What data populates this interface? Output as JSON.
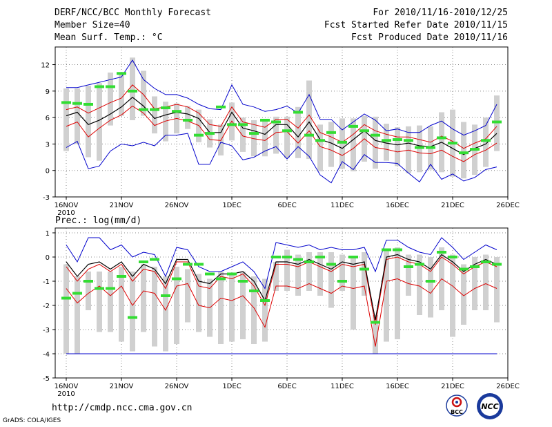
{
  "header": {
    "title": "DERF/NCC/BCC Monthly Forecast",
    "member_size": "Member Size=40",
    "variable": "Mean Surf. Temp.: °C",
    "period": "For 2010/11/16-2010/12/25",
    "started": "Fcst Started Refer Date 2010/11/15",
    "produced": "Fcst Produced Date 2010/11/16"
  },
  "footer": {
    "url": "http://cmdp.ncc.cma.gov.cn",
    "credit": "GrADS: COLA/IGES",
    "logo_left": "BCC",
    "logo_right": "NCC"
  },
  "colors": {
    "box": "#d0d0d0",
    "max": "#0000cc",
    "min": "#0000cc",
    "p_hi": "#dd0000",
    "p_lo": "#dd0000",
    "mean": "#000000",
    "marker": "#33dd33",
    "grid": "#888888"
  },
  "chart_data": [
    {
      "type": "box-spread",
      "title": "Mean Surf. Temp.: °C",
      "x_labels": [
        "16NOV",
        "21NOV",
        "26NOV",
        "1DEC",
        "6DEC",
        "11DEC",
        "16DEC",
        "21DEC",
        "26DEC"
      ],
      "x_year": "2010",
      "x_label_days": [
        0,
        5,
        10,
        15,
        20,
        25,
        30,
        35,
        40
      ],
      "xlim": [
        -1,
        40
      ],
      "ylim": [
        -3,
        14
      ],
      "y_ticks": [
        -3,
        0,
        3,
        6,
        9,
        12
      ],
      "y_tick_labels": [
        "-3",
        "0",
        "3",
        "6",
        "9",
        "12"
      ],
      "days": [
        0,
        1,
        2,
        3,
        4,
        5,
        6,
        7,
        8,
        9,
        10,
        11,
        12,
        13,
        14,
        15,
        16,
        17,
        18,
        19,
        20,
        21,
        22,
        23,
        24,
        25,
        26,
        27,
        28,
        29,
        30,
        31,
        32,
        33,
        34,
        35,
        36,
        37,
        38,
        39
      ],
      "series": [
        {
          "name": "max",
          "values": [
            9.4,
            9.4,
            9.7,
            10.0,
            10.3,
            10.6,
            12.5,
            10.3,
            9.3,
            8.6,
            8.6,
            8.2,
            7.5,
            7.0,
            6.9,
            9.7,
            7.5,
            7.2,
            6.7,
            6.9,
            7.3,
            6.5,
            8.6,
            5.8,
            5.8,
            4.6,
            5.5,
            6.4,
            5.7,
            4.5,
            4.7,
            4.3,
            4.3,
            5.1,
            5.6,
            4.7,
            4.0,
            4.5,
            5.1,
            7.5
          ]
        },
        {
          "name": "p_hi",
          "values": [
            6.9,
            7.2,
            6.5,
            7.1,
            7.7,
            8.2,
            9.7,
            8.6,
            7.0,
            7.2,
            7.5,
            7.2,
            6.5,
            5.2,
            5.0,
            7.2,
            5.5,
            5.2,
            4.9,
            5.8,
            5.8,
            4.8,
            6.3,
            4.3,
            3.8,
            3.2,
            4.1,
            5.2,
            4.5,
            4.1,
            3.8,
            3.8,
            3.5,
            3.2,
            3.9,
            3.3,
            2.5,
            3.1,
            3.6,
            5.0
          ]
        },
        {
          "name": "mean",
          "values": [
            6.2,
            6.6,
            5.2,
            5.7,
            6.4,
            7.2,
            8.3,
            7.3,
            5.9,
            6.3,
            6.6,
            6.4,
            5.9,
            4.3,
            4.3,
            6.6,
            4.8,
            4.5,
            4.1,
            5.2,
            5.2,
            3.8,
            5.5,
            3.5,
            3.1,
            2.5,
            3.5,
            4.5,
            3.4,
            3.1,
            2.9,
            3.1,
            2.8,
            2.7,
            3.2,
            2.5,
            1.8,
            2.5,
            3.0,
            4.2
          ]
        },
        {
          "name": "p_lo",
          "values": [
            5.0,
            5.5,
            3.8,
            4.8,
            5.7,
            6.3,
            7.3,
            6.5,
            5.1,
            5.6,
            5.9,
            5.6,
            5.1,
            3.5,
            3.4,
            5.6,
            3.9,
            3.6,
            3.4,
            4.3,
            4.4,
            3.1,
            4.5,
            2.7,
            2.3,
            1.7,
            2.5,
            3.6,
            2.6,
            2.4,
            2.1,
            2.3,
            2.0,
            1.9,
            2.3,
            1.6,
            1.0,
            1.8,
            2.3,
            3.1
          ]
        },
        {
          "name": "min",
          "values": [
            2.6,
            3.3,
            0.2,
            0.5,
            2.2,
            3.0,
            2.8,
            3.2,
            2.8,
            4.0,
            4.0,
            4.2,
            0.7,
            0.7,
            3.2,
            2.8,
            1.2,
            1.5,
            2.2,
            2.7,
            1.3,
            2.7,
            1.6,
            -0.5,
            -1.4,
            1.0,
            0.1,
            1.8,
            0.9,
            0.9,
            0.8,
            -0.3,
            -1.3,
            0.7,
            -1.0,
            -0.4,
            -1.2,
            -0.8,
            0.1,
            0.4
          ]
        },
        {
          "name": "box_hi",
          "values": [
            9.3,
            9.3,
            9.6,
            9.9,
            11.1,
            11.0,
            12.8,
            11.3,
            8.4,
            7.8,
            7.6,
            7.3,
            6.9,
            5.8,
            5.2,
            7.7,
            6.0,
            5.7,
            5.8,
            6.1,
            6.1,
            7.2,
            10.2,
            5.2,
            5.5,
            5.9,
            5.9,
            6.2,
            6.1,
            5.3,
            4.9,
            5.0,
            5.1,
            5.0,
            6.6,
            6.9,
            5.5,
            5.2,
            6.0,
            8.5
          ]
        },
        {
          "name": "box_lo",
          "values": [
            2.2,
            3.0,
            1.5,
            1.1,
            5.1,
            6.2,
            5.7,
            6.2,
            4.2,
            3.3,
            4.2,
            4.7,
            3.2,
            2.6,
            1.7,
            3.4,
            2.1,
            1.6,
            1.6,
            1.9,
            1.4,
            1.4,
            1.3,
            -0.1,
            0.4,
            0.2,
            -0.1,
            1.0,
            0.2,
            1.1,
            0.5,
            -0.3,
            -0.2,
            0.1,
            -0.2,
            -0.7,
            -0.9,
            -0.5,
            0.4,
            2.2
          ]
        },
        {
          "name": "marker",
          "values": [
            7.7,
            7.6,
            7.5,
            9.5,
            9.5,
            11.0,
            9.0,
            6.9,
            6.9,
            7.1,
            6.7,
            5.7,
            4.0,
            4.2,
            7.2,
            5.2,
            5.2,
            4.2,
            5.7,
            5.5,
            4.5,
            6.6,
            4.0,
            3.4,
            4.3,
            3.2,
            5.0,
            4.5,
            4.0,
            3.4,
            3.5,
            3.4,
            2.6,
            2.6,
            3.7,
            3.1,
            2.0,
            2.4,
            3.4,
            5.5
          ]
        }
      ]
    },
    {
      "type": "box-spread",
      "title": "Prec.: log(mm/d)",
      "x_labels": [
        "16NOV",
        "21NOV",
        "26NOV",
        "1DEC",
        "6DEC",
        "11DEC",
        "16DEC",
        "21DEC",
        "26DEC"
      ],
      "x_year": "2010",
      "x_label_days": [
        0,
        5,
        10,
        15,
        20,
        25,
        30,
        35,
        40
      ],
      "xlim": [
        -1,
        40
      ],
      "ylim": [
        -5,
        1.2
      ],
      "y_ticks": [
        -5,
        -4,
        -3,
        -2,
        -1,
        0,
        1
      ],
      "y_tick_labels": [
        "-5",
        "-4",
        "-3",
        "-2",
        "-1",
        "0",
        "1"
      ],
      "days": [
        0,
        1,
        2,
        3,
        4,
        5,
        6,
        7,
        8,
        9,
        10,
        11,
        12,
        13,
        14,
        15,
        16,
        17,
        18,
        19,
        20,
        21,
        22,
        23,
        24,
        25,
        26,
        27,
        28,
        29,
        30,
        31,
        32,
        33,
        34,
        35,
        36,
        37,
        38,
        39
      ],
      "series": [
        {
          "name": "max",
          "values": [
            0.5,
            -0.2,
            0.8,
            0.8,
            0.3,
            0.5,
            0.0,
            0.2,
            0.1,
            -0.8,
            0.4,
            0.3,
            -0.4,
            -0.6,
            -0.6,
            -0.4,
            -0.2,
            -0.6,
            -1.3,
            0.6,
            0.5,
            0.4,
            0.5,
            0.3,
            0.4,
            0.3,
            0.3,
            0.4,
            -0.6,
            0.7,
            0.7,
            0.4,
            0.2,
            0.1,
            0.8,
            0.4,
            -0.1,
            0.2,
            0.5,
            0.3
          ]
        },
        {
          "name": "p_hi",
          "values": [
            -0.4,
            -1.0,
            -0.5,
            -0.3,
            -0.6,
            -0.3,
            -1.0,
            -0.5,
            -0.6,
            -1.3,
            -0.2,
            -0.2,
            -1.2,
            -1.3,
            -0.8,
            -0.9,
            -0.7,
            -1.2,
            -2.0,
            -0.3,
            -0.3,
            -0.4,
            -0.2,
            -0.4,
            -0.6,
            -0.3,
            -0.4,
            -0.3,
            -2.8,
            -0.1,
            0.0,
            -0.2,
            -0.3,
            -0.6,
            0.0,
            -0.3,
            -0.7,
            -0.4,
            -0.2,
            -0.4
          ]
        },
        {
          "name": "mean",
          "values": [
            -0.2,
            -0.8,
            -0.3,
            -0.2,
            -0.5,
            -0.2,
            -0.8,
            -0.3,
            -0.5,
            -1.1,
            -0.1,
            -0.1,
            -1.0,
            -1.1,
            -0.7,
            -0.7,
            -0.6,
            -1.0,
            -1.8,
            -0.2,
            -0.2,
            -0.3,
            -0.1,
            -0.3,
            -0.5,
            -0.2,
            -0.3,
            -0.2,
            -2.6,
            0.0,
            0.1,
            -0.1,
            -0.2,
            -0.5,
            0.1,
            -0.2,
            -0.6,
            -0.3,
            -0.1,
            -0.3
          ]
        },
        {
          "name": "p_lo",
          "values": [
            -1.3,
            -1.9,
            -1.5,
            -1.2,
            -1.6,
            -1.2,
            -2.0,
            -1.4,
            -1.5,
            -2.2,
            -1.2,
            -1.1,
            -2.0,
            -2.1,
            -1.7,
            -1.8,
            -1.6,
            -2.1,
            -2.9,
            -1.2,
            -1.2,
            -1.3,
            -1.1,
            -1.3,
            -1.5,
            -1.2,
            -1.3,
            -1.2,
            -3.7,
            -1.0,
            -0.9,
            -1.1,
            -1.2,
            -1.5,
            -0.9,
            -1.2,
            -1.6,
            -1.3,
            -1.1,
            -1.3
          ]
        },
        {
          "name": "min",
          "values": [
            -4.0,
            -4.0,
            -4.0,
            -4.0,
            -4.0,
            -4.0,
            -4.0,
            -4.0,
            -4.0,
            -4.0,
            -4.0,
            -4.0,
            -4.0,
            -4.0,
            -4.0,
            -4.0,
            -4.0,
            -4.0,
            -4.0,
            -4.0,
            -4.0,
            -4.0,
            -4.0,
            -4.0,
            -4.0,
            -4.0,
            -4.0,
            -4.0,
            -4.0,
            -4.0,
            -4.0,
            -4.0,
            -4.0,
            -4.0,
            -4.0,
            -4.0,
            -4.0,
            -4.0,
            -4.0,
            -4.0
          ]
        },
        {
          "name": "box_hi",
          "values": [
            -0.3,
            -0.8,
            -0.6,
            -0.6,
            -0.6,
            -0.4,
            -0.6,
            -0.3,
            -0.4,
            -0.8,
            -0.4,
            -0.5,
            -0.7,
            -0.9,
            -0.6,
            -0.7,
            -0.6,
            -0.8,
            -0.9,
            -0.2,
            0.3,
            0.1,
            0.2,
            0.2,
            0.2,
            0.1,
            0.0,
            0.2,
            -2.4,
            0.3,
            0.4,
            0.1,
            0.1,
            0.0,
            0.4,
            0.1,
            -0.3,
            0.0,
            0.1,
            0.0
          ]
        },
        {
          "name": "box_lo",
          "values": [
            -4.0,
            -4.0,
            -2.2,
            -3.1,
            -3.1,
            -3.5,
            -3.9,
            -3.1,
            -3.7,
            -3.9,
            -3.6,
            -2.7,
            -3.1,
            -3.3,
            -3.6,
            -3.5,
            -3.4,
            -3.6,
            -3.5,
            -1.4,
            -1.4,
            -1.6,
            -1.4,
            -1.6,
            -2.1,
            -1.4,
            -3.0,
            -1.6,
            -4.0,
            -3.5,
            -3.4,
            -1.6,
            -2.4,
            -2.5,
            -2.2,
            -3.3,
            -2.8,
            -2.2,
            -2.2,
            -2.7
          ]
        },
        {
          "name": "marker",
          "values": [
            -1.7,
            -1.5,
            -1.0,
            -1.3,
            -1.3,
            -0.8,
            -2.5,
            -0.2,
            -0.1,
            -1.6,
            -0.9,
            -0.3,
            -0.3,
            -0.7,
            -0.9,
            -0.7,
            -1.0,
            -1.4,
            -1.8,
            0.0,
            0.0,
            -0.1,
            -0.2,
            0.0,
            -0.3,
            -1.0,
            0.0,
            -0.5,
            -2.7,
            0.3,
            0.3,
            -0.4,
            -0.3,
            -1.0,
            0.2,
            0.0,
            -0.5,
            -0.4,
            -0.2,
            -0.3
          ]
        }
      ]
    }
  ]
}
